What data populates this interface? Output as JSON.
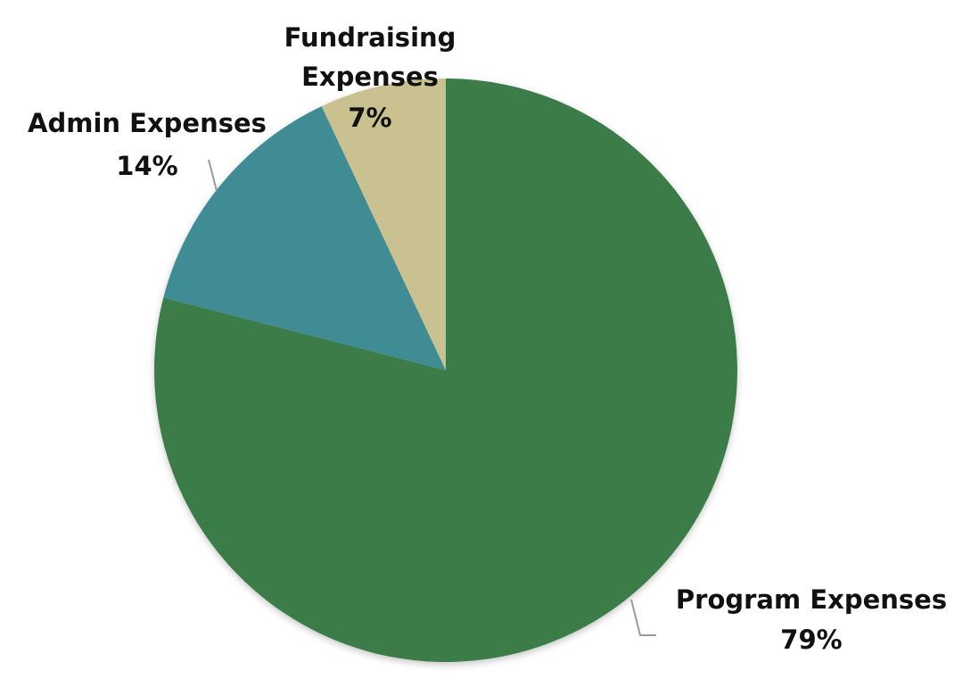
{
  "chart_data": {
    "type": "pie",
    "slices": [
      {
        "key": "program",
        "label_lines": [
          "Program Expenses"
        ],
        "percent_label": "79%",
        "value": 79,
        "color": "#3a7b48"
      },
      {
        "key": "admin",
        "label_lines": [
          "Admin Expenses"
        ],
        "percent_label": "14%",
        "value": 14,
        "color": "#3f8c94"
      },
      {
        "key": "fundraising",
        "label_lines": [
          "Fundraising",
          "Expenses"
        ],
        "percent_label": "7%",
        "value": 7,
        "color": "#c9c290"
      }
    ],
    "start": "top",
    "direction": "clockwise"
  }
}
